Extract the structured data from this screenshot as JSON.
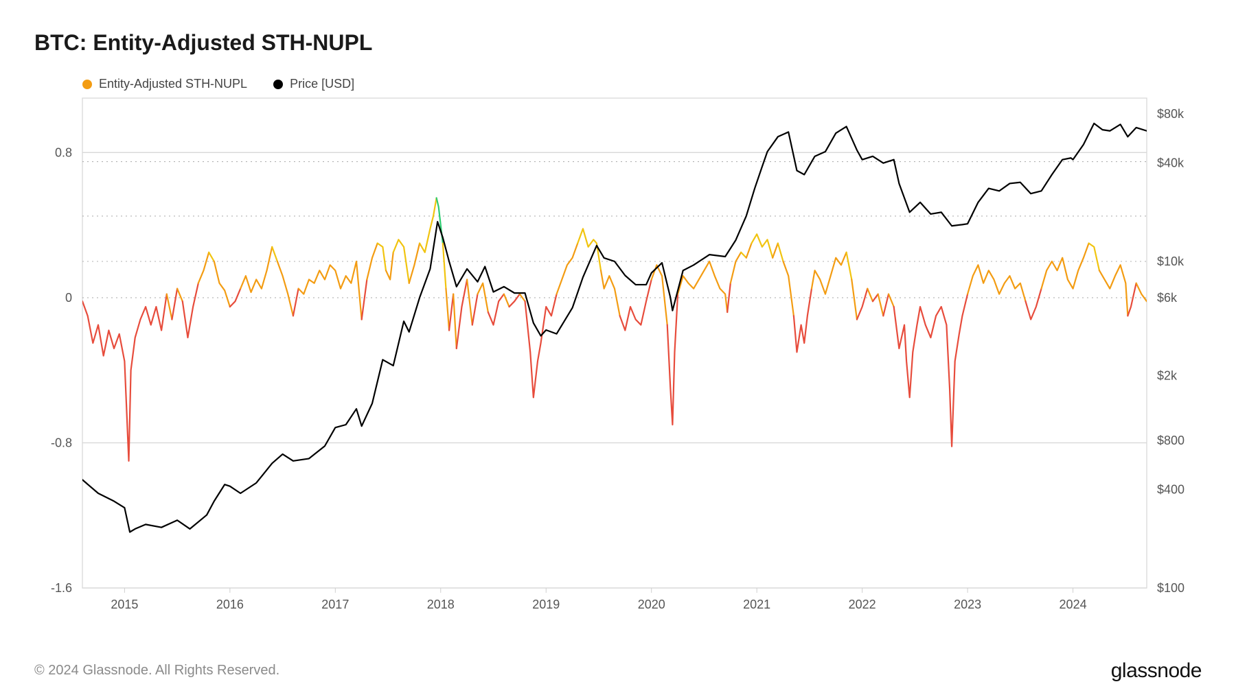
{
  "title": "BTC: Entity-Adjusted STH-NUPL",
  "legend": {
    "series1": {
      "label": "Entity-Adjusted STH-NUPL",
      "color": "#f39c12"
    },
    "series2": {
      "label": "Price [USD]",
      "color": "#000000"
    }
  },
  "footer": {
    "left": "© 2024 Glassnode. All Rights Reserved.",
    "right": "glassnode"
  },
  "chart": {
    "plot_bg": "#ffffff",
    "grid_border_color": "#d8d8d8",
    "grid_dotted_color": "#b0b0b0",
    "axis_label_color": "#555555",
    "axis_fontsize": 18,
    "x": {
      "min": 2014.6,
      "max": 2024.7,
      "ticks": [
        2015,
        2016,
        2017,
        2018,
        2019,
        2020,
        2021,
        2022,
        2023,
        2024
      ],
      "tick_labels": [
        "2015",
        "2016",
        "2017",
        "2018",
        "2019",
        "2020",
        "2021",
        "2022",
        "2023",
        "2024"
      ]
    },
    "y_left": {
      "min": -1.6,
      "max": 1.1,
      "ticks": [
        -1.6,
        -0.8,
        0,
        0.8
      ],
      "tick_labels": [
        "-1.6",
        "-0.8",
        "0",
        "0.8"
      ],
      "grid_at": [
        -1.6,
        -0.8,
        0.8
      ]
    },
    "y_right": {
      "type": "log",
      "min_log10": 2.0,
      "max_log10": 5.0,
      "ticks_log10": [
        2.0,
        2.602,
        2.903,
        3.301,
        3.778,
        4.0,
        4.602,
        4.903
      ],
      "tick_labels": [
        "$100",
        "$400",
        "$800",
        "$2k",
        "$6k",
        "$10k",
        "$40k",
        "$80k"
      ]
    },
    "dotted_hlines_left_y": [
      0.2,
      0.45,
      0.75
    ],
    "nupl_colors": {
      "red": "#e74c3c",
      "orange": "#f39c12",
      "yellow": "#f1c40f",
      "green": "#2ecc71"
    },
    "nupl_thresholds": {
      "orange_min": 0.0,
      "yellow_min": 0.25,
      "green_min": 0.5
    },
    "nupl_line_width": 2.2,
    "price_color": "#000000",
    "price_line_width": 2.2,
    "price": [
      [
        2014.6,
        460
      ],
      [
        2014.75,
        380
      ],
      [
        2014.9,
        340
      ],
      [
        2015.0,
        310
      ],
      [
        2015.05,
        220
      ],
      [
        2015.1,
        230
      ],
      [
        2015.2,
        245
      ],
      [
        2015.35,
        235
      ],
      [
        2015.5,
        260
      ],
      [
        2015.62,
        230
      ],
      [
        2015.78,
        280
      ],
      [
        2015.85,
        340
      ],
      [
        2015.95,
        430
      ],
      [
        2016.0,
        420
      ],
      [
        2016.1,
        380
      ],
      [
        2016.25,
        440
      ],
      [
        2016.4,
        580
      ],
      [
        2016.5,
        660
      ],
      [
        2016.6,
        600
      ],
      [
        2016.75,
        620
      ],
      [
        2016.9,
        740
      ],
      [
        2017.0,
        960
      ],
      [
        2017.1,
        1000
      ],
      [
        2017.2,
        1250
      ],
      [
        2017.25,
        980
      ],
      [
        2017.35,
        1350
      ],
      [
        2017.45,
        2500
      ],
      [
        2017.55,
        2300
      ],
      [
        2017.65,
        4300
      ],
      [
        2017.7,
        3700
      ],
      [
        2017.8,
        6000
      ],
      [
        2017.9,
        9000
      ],
      [
        2017.97,
        17500
      ],
      [
        2018.02,
        14000
      ],
      [
        2018.08,
        10000
      ],
      [
        2018.15,
        7000
      ],
      [
        2018.25,
        9000
      ],
      [
        2018.35,
        7500
      ],
      [
        2018.42,
        9300
      ],
      [
        2018.5,
        6500
      ],
      [
        2018.6,
        7000
      ],
      [
        2018.7,
        6400
      ],
      [
        2018.8,
        6400
      ],
      [
        2018.88,
        4200
      ],
      [
        2018.95,
        3500
      ],
      [
        2019.0,
        3800
      ],
      [
        2019.1,
        3600
      ],
      [
        2019.25,
        5200
      ],
      [
        2019.35,
        8000
      ],
      [
        2019.48,
        12500
      ],
      [
        2019.55,
        10500
      ],
      [
        2019.65,
        10000
      ],
      [
        2019.75,
        8200
      ],
      [
        2019.85,
        7200
      ],
      [
        2019.95,
        7200
      ],
      [
        2020.0,
        8500
      ],
      [
        2020.1,
        9800
      ],
      [
        2020.18,
        6000
      ],
      [
        2020.2,
        5000
      ],
      [
        2020.3,
        8800
      ],
      [
        2020.4,
        9500
      ],
      [
        2020.55,
        11000
      ],
      [
        2020.7,
        10700
      ],
      [
        2020.8,
        13500
      ],
      [
        2020.9,
        19000
      ],
      [
        2020.98,
        28000
      ],
      [
        2021.05,
        38000
      ],
      [
        2021.1,
        47000
      ],
      [
        2021.2,
        58000
      ],
      [
        2021.3,
        62000
      ],
      [
        2021.38,
        36000
      ],
      [
        2021.45,
        34000
      ],
      [
        2021.55,
        44000
      ],
      [
        2021.65,
        47000
      ],
      [
        2021.75,
        61000
      ],
      [
        2021.85,
        67000
      ],
      [
        2021.95,
        48000
      ],
      [
        2022.0,
        42000
      ],
      [
        2022.1,
        44000
      ],
      [
        2022.2,
        40000
      ],
      [
        2022.3,
        42000
      ],
      [
        2022.35,
        30000
      ],
      [
        2022.45,
        20000
      ],
      [
        2022.55,
        23000
      ],
      [
        2022.65,
        19500
      ],
      [
        2022.75,
        20000
      ],
      [
        2022.85,
        16500
      ],
      [
        2022.95,
        16800
      ],
      [
        2023.0,
        17000
      ],
      [
        2023.1,
        23000
      ],
      [
        2023.2,
        28000
      ],
      [
        2023.3,
        27000
      ],
      [
        2023.4,
        30000
      ],
      [
        2023.5,
        30500
      ],
      [
        2023.6,
        26000
      ],
      [
        2023.7,
        27000
      ],
      [
        2023.8,
        34000
      ],
      [
        2023.9,
        42000
      ],
      [
        2023.98,
        43000
      ],
      [
        2024.0,
        42000
      ],
      [
        2024.1,
        52000
      ],
      [
        2024.2,
        70000
      ],
      [
        2024.28,
        64000
      ],
      [
        2024.35,
        63000
      ],
      [
        2024.45,
        69000
      ],
      [
        2024.52,
        58000
      ],
      [
        2024.6,
        66000
      ],
      [
        2024.7,
        63000
      ]
    ],
    "nupl": [
      [
        2014.6,
        -0.02
      ],
      [
        2014.65,
        -0.1
      ],
      [
        2014.7,
        -0.25
      ],
      [
        2014.75,
        -0.15
      ],
      [
        2014.8,
        -0.32
      ],
      [
        2014.85,
        -0.18
      ],
      [
        2014.9,
        -0.28
      ],
      [
        2014.95,
        -0.2
      ],
      [
        2015.0,
        -0.35
      ],
      [
        2015.04,
        -0.9
      ],
      [
        2015.06,
        -0.4
      ],
      [
        2015.1,
        -0.22
      ],
      [
        2015.15,
        -0.12
      ],
      [
        2015.2,
        -0.05
      ],
      [
        2015.25,
        -0.15
      ],
      [
        2015.3,
        -0.05
      ],
      [
        2015.35,
        -0.18
      ],
      [
        2015.4,
        0.02
      ],
      [
        2015.45,
        -0.12
      ],
      [
        2015.5,
        0.05
      ],
      [
        2015.55,
        -0.02
      ],
      [
        2015.6,
        -0.22
      ],
      [
        2015.65,
        -0.05
      ],
      [
        2015.7,
        0.08
      ],
      [
        2015.75,
        0.15
      ],
      [
        2015.8,
        0.25
      ],
      [
        2015.85,
        0.2
      ],
      [
        2015.9,
        0.08
      ],
      [
        2015.95,
        0.04
      ],
      [
        2016.0,
        -0.05
      ],
      [
        2016.05,
        -0.02
      ],
      [
        2016.1,
        0.05
      ],
      [
        2016.15,
        0.12
      ],
      [
        2016.2,
        0.03
      ],
      [
        2016.25,
        0.1
      ],
      [
        2016.3,
        0.05
      ],
      [
        2016.35,
        0.15
      ],
      [
        2016.4,
        0.28
      ],
      [
        2016.45,
        0.2
      ],
      [
        2016.5,
        0.12
      ],
      [
        2016.55,
        0.02
      ],
      [
        2016.6,
        -0.1
      ],
      [
        2016.65,
        0.05
      ],
      [
        2016.7,
        0.02
      ],
      [
        2016.75,
        0.1
      ],
      [
        2016.8,
        0.08
      ],
      [
        2016.85,
        0.15
      ],
      [
        2016.9,
        0.1
      ],
      [
        2016.95,
        0.18
      ],
      [
        2017.0,
        0.15
      ],
      [
        2017.05,
        0.05
      ],
      [
        2017.1,
        0.12
      ],
      [
        2017.15,
        0.08
      ],
      [
        2017.2,
        0.2
      ],
      [
        2017.25,
        -0.12
      ],
      [
        2017.3,
        0.1
      ],
      [
        2017.35,
        0.22
      ],
      [
        2017.4,
        0.3
      ],
      [
        2017.45,
        0.28
      ],
      [
        2017.48,
        0.15
      ],
      [
        2017.52,
        0.1
      ],
      [
        2017.55,
        0.25
      ],
      [
        2017.6,
        0.32
      ],
      [
        2017.65,
        0.28
      ],
      [
        2017.7,
        0.08
      ],
      [
        2017.75,
        0.18
      ],
      [
        2017.8,
        0.3
      ],
      [
        2017.85,
        0.25
      ],
      [
        2017.9,
        0.38
      ],
      [
        2017.93,
        0.45
      ],
      [
        2017.96,
        0.55
      ],
      [
        2017.98,
        0.5
      ],
      [
        2018.02,
        0.3
      ],
      [
        2018.05,
        0.05
      ],
      [
        2018.08,
        -0.18
      ],
      [
        2018.12,
        0.02
      ],
      [
        2018.15,
        -0.28
      ],
      [
        2018.2,
        -0.05
      ],
      [
        2018.25,
        0.1
      ],
      [
        2018.3,
        -0.15
      ],
      [
        2018.35,
        0.02
      ],
      [
        2018.4,
        0.08
      ],
      [
        2018.45,
        -0.08
      ],
      [
        2018.5,
        -0.15
      ],
      [
        2018.55,
        -0.02
      ],
      [
        2018.6,
        0.02
      ],
      [
        2018.65,
        -0.05
      ],
      [
        2018.7,
        -0.02
      ],
      [
        2018.75,
        0.02
      ],
      [
        2018.8,
        -0.02
      ],
      [
        2018.85,
        -0.3
      ],
      [
        2018.88,
        -0.55
      ],
      [
        2018.92,
        -0.35
      ],
      [
        2018.95,
        -0.25
      ],
      [
        2019.0,
        -0.05
      ],
      [
        2019.05,
        -0.1
      ],
      [
        2019.1,
        0.02
      ],
      [
        2019.15,
        0.1
      ],
      [
        2019.2,
        0.18
      ],
      [
        2019.25,
        0.22
      ],
      [
        2019.3,
        0.3
      ],
      [
        2019.35,
        0.38
      ],
      [
        2019.4,
        0.28
      ],
      [
        2019.45,
        0.32
      ],
      [
        2019.48,
        0.3
      ],
      [
        2019.52,
        0.15
      ],
      [
        2019.55,
        0.05
      ],
      [
        2019.6,
        0.12
      ],
      [
        2019.65,
        0.05
      ],
      [
        2019.7,
        -0.1
      ],
      [
        2019.75,
        -0.18
      ],
      [
        2019.8,
        -0.05
      ],
      [
        2019.85,
        -0.12
      ],
      [
        2019.9,
        -0.15
      ],
      [
        2019.95,
        -0.02
      ],
      [
        2020.0,
        0.1
      ],
      [
        2020.05,
        0.18
      ],
      [
        2020.1,
        0.12
      ],
      [
        2020.15,
        -0.15
      ],
      [
        2020.18,
        -0.5
      ],
      [
        2020.2,
        -0.7
      ],
      [
        2020.22,
        -0.3
      ],
      [
        2020.25,
        0.02
      ],
      [
        2020.3,
        0.12
      ],
      [
        2020.35,
        0.08
      ],
      [
        2020.4,
        0.05
      ],
      [
        2020.45,
        0.1
      ],
      [
        2020.5,
        0.15
      ],
      [
        2020.55,
        0.2
      ],
      [
        2020.6,
        0.12
      ],
      [
        2020.65,
        0.05
      ],
      [
        2020.7,
        0.02
      ],
      [
        2020.72,
        -0.08
      ],
      [
        2020.75,
        0.08
      ],
      [
        2020.8,
        0.2
      ],
      [
        2020.85,
        0.25
      ],
      [
        2020.9,
        0.22
      ],
      [
        2020.95,
        0.3
      ],
      [
        2021.0,
        0.35
      ],
      [
        2021.05,
        0.28
      ],
      [
        2021.1,
        0.32
      ],
      [
        2021.15,
        0.22
      ],
      [
        2021.2,
        0.3
      ],
      [
        2021.25,
        0.2
      ],
      [
        2021.3,
        0.12
      ],
      [
        2021.35,
        -0.1
      ],
      [
        2021.38,
        -0.3
      ],
      [
        2021.42,
        -0.15
      ],
      [
        2021.45,
        -0.25
      ],
      [
        2021.48,
        -0.1
      ],
      [
        2021.52,
        0.05
      ],
      [
        2021.55,
        0.15
      ],
      [
        2021.6,
        0.1
      ],
      [
        2021.65,
        0.02
      ],
      [
        2021.7,
        0.12
      ],
      [
        2021.75,
        0.22
      ],
      [
        2021.8,
        0.18
      ],
      [
        2021.85,
        0.25
      ],
      [
        2021.9,
        0.1
      ],
      [
        2021.95,
        -0.12
      ],
      [
        2022.0,
        -0.05
      ],
      [
        2022.05,
        0.05
      ],
      [
        2022.1,
        -0.02
      ],
      [
        2022.15,
        0.02
      ],
      [
        2022.2,
        -0.1
      ],
      [
        2022.25,
        0.02
      ],
      [
        2022.3,
        -0.05
      ],
      [
        2022.35,
        -0.28
      ],
      [
        2022.4,
        -0.15
      ],
      [
        2022.42,
        -0.35
      ],
      [
        2022.45,
        -0.55
      ],
      [
        2022.48,
        -0.3
      ],
      [
        2022.52,
        -0.15
      ],
      [
        2022.55,
        -0.05
      ],
      [
        2022.6,
        -0.15
      ],
      [
        2022.65,
        -0.22
      ],
      [
        2022.7,
        -0.1
      ],
      [
        2022.75,
        -0.05
      ],
      [
        2022.8,
        -0.15
      ],
      [
        2022.83,
        -0.5
      ],
      [
        2022.85,
        -0.82
      ],
      [
        2022.88,
        -0.35
      ],
      [
        2022.92,
        -0.2
      ],
      [
        2022.95,
        -0.1
      ],
      [
        2023.0,
        0.02
      ],
      [
        2023.05,
        0.12
      ],
      [
        2023.1,
        0.18
      ],
      [
        2023.15,
        0.08
      ],
      [
        2023.2,
        0.15
      ],
      [
        2023.25,
        0.1
      ],
      [
        2023.3,
        0.02
      ],
      [
        2023.35,
        0.08
      ],
      [
        2023.4,
        0.12
      ],
      [
        2023.45,
        0.05
      ],
      [
        2023.5,
        0.08
      ],
      [
        2023.55,
        -0.02
      ],
      [
        2023.6,
        -0.12
      ],
      [
        2023.65,
        -0.05
      ],
      [
        2023.7,
        0.05
      ],
      [
        2023.75,
        0.15
      ],
      [
        2023.8,
        0.2
      ],
      [
        2023.85,
        0.15
      ],
      [
        2023.9,
        0.22
      ],
      [
        2023.95,
        0.1
      ],
      [
        2024.0,
        0.05
      ],
      [
        2024.05,
        0.15
      ],
      [
        2024.1,
        0.22
      ],
      [
        2024.15,
        0.3
      ],
      [
        2024.2,
        0.28
      ],
      [
        2024.25,
        0.15
      ],
      [
        2024.3,
        0.1
      ],
      [
        2024.35,
        0.05
      ],
      [
        2024.4,
        0.12
      ],
      [
        2024.45,
        0.18
      ],
      [
        2024.5,
        0.08
      ],
      [
        2024.52,
        -0.1
      ],
      [
        2024.55,
        -0.05
      ],
      [
        2024.6,
        0.08
      ],
      [
        2024.65,
        0.02
      ],
      [
        2024.7,
        -0.02
      ]
    ]
  }
}
